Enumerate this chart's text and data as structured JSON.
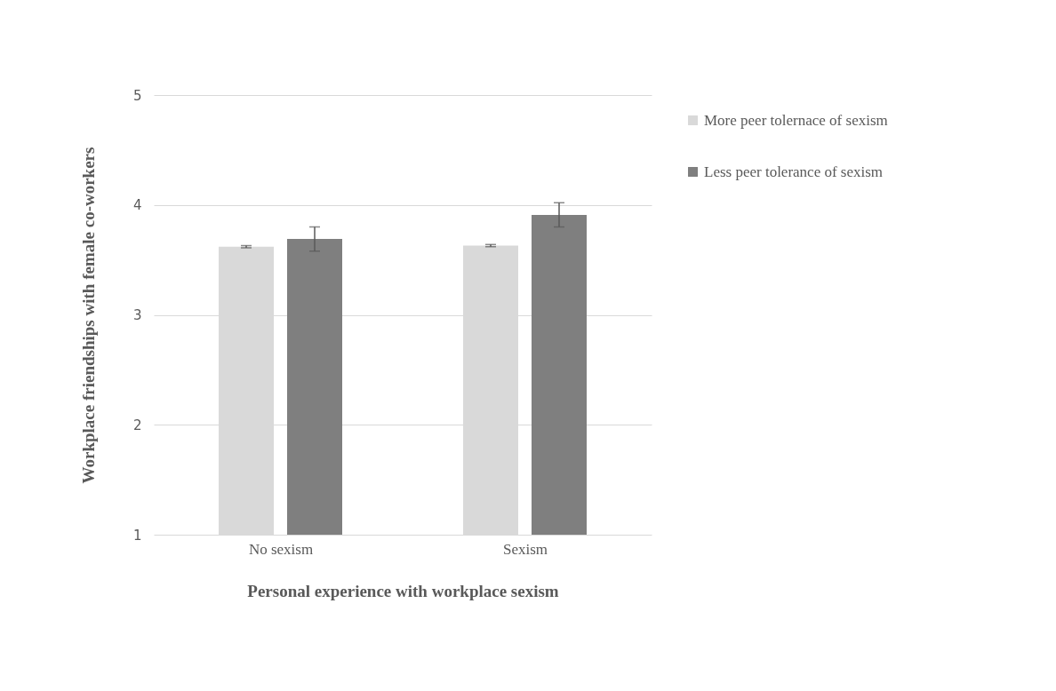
{
  "chart_data": {
    "type": "bar",
    "xlabel": "Personal experience with workplace sexism",
    "ylabel": "Workplace friendships with female co-workers",
    "categories": [
      "No sexism",
      "Sexism"
    ],
    "series": [
      {
        "name": "More peer tolernace of sexism",
        "color": "#d9d9d9",
        "values": [
          3.62,
          3.63
        ],
        "errors": [
          0.01,
          0.01
        ]
      },
      {
        "name": "Less peer tolerance of sexism",
        "color": "#7f7f7f",
        "values": [
          3.69,
          3.91
        ],
        "errors": [
          0.11,
          0.11
        ]
      }
    ],
    "ylim": [
      1,
      5
    ],
    "yticks": [
      1,
      2,
      3,
      4,
      5
    ],
    "grid": "y",
    "legend": "right"
  }
}
